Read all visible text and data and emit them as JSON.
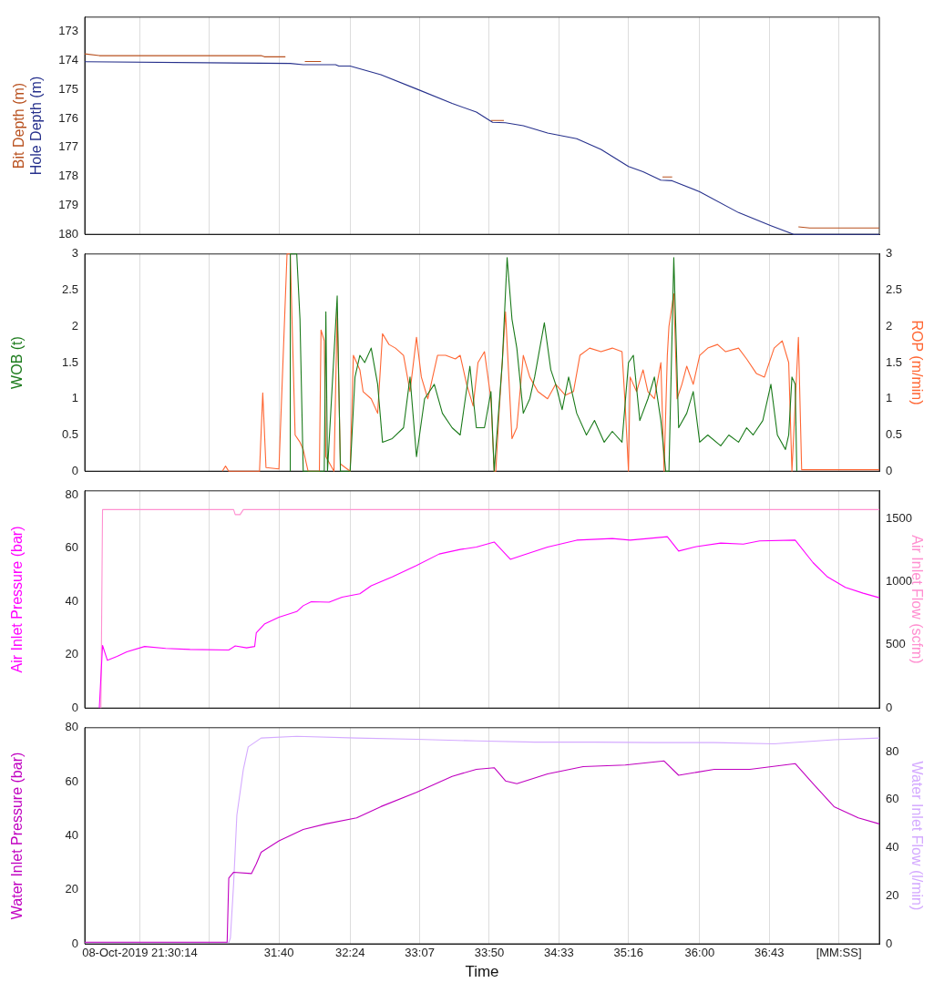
{
  "chart_data": [
    {
      "type": "line",
      "xlim": [
        1780,
        2271
      ],
      "ylim": [
        180,
        172.5
      ],
      "yticks": [
        173,
        174,
        175,
        176,
        177,
        178,
        179,
        180
      ],
      "tick_labels": "y",
      "grid": "x",
      "xticks": [
        {
          "value": 1814,
          "label": null
        },
        {
          "value": 1857,
          "label": null
        },
        {
          "value": 1900,
          "label": null
        },
        {
          "value": 1944,
          "label": null
        },
        {
          "value": 1987,
          "label": null
        },
        {
          "value": 2030,
          "label": null
        },
        {
          "value": 2073,
          "label": null
        },
        {
          "value": 2116,
          "label": null
        },
        {
          "value": 2160,
          "label": null
        },
        {
          "value": 2203,
          "label": null
        },
        {
          "value": 2246,
          "label": null
        }
      ],
      "series": [
        {
          "name": "Bit Depth (m)",
          "color": "#b8501e",
          "x": [
            1780,
            1789,
            1889,
            1891,
            1904,
            1910,
            1916,
            1926,
            1930,
            2031,
            2039,
            2042,
            2137,
            2143,
            2145,
            2221,
            2228,
            2271
          ],
          "values": [
            173.77,
            173.83,
            173.83,
            173.87,
            173.87,
            null,
            174.03,
            174.03,
            null,
            176.07,
            176.07,
            null,
            178.02,
            178.02,
            null,
            179.74,
            179.78,
            179.78
          ]
        },
        {
          "name": "Hole Depth (m)",
          "color": "#26308c",
          "x": [
            1780,
            1907,
            1915,
            1935,
            1937,
            1944,
            1963,
            1985,
            2007,
            2022,
            2032,
            2040,
            2051,
            2066,
            2084,
            2099,
            2116,
            2125,
            2136,
            2143,
            2160,
            2184,
            2204,
            2218,
            2271
          ],
          "values": [
            174.04,
            174.1,
            174.14,
            174.14,
            174.19,
            174.19,
            174.49,
            174.98,
            175.48,
            175.78,
            176.13,
            176.15,
            176.25,
            176.5,
            176.7,
            177.07,
            177.66,
            177.84,
            178.13,
            178.15,
            178.53,
            179.25,
            179.7,
            180,
            180
          ]
        }
      ]
    },
    {
      "type": "line",
      "ylabel": "WOB (t)",
      "y2label": "ROP (m/min)",
      "xlim": [
        1780,
        2271
      ],
      "ylim": [
        0,
        3
      ],
      "yticks": [
        0,
        0.5,
        1,
        1.5,
        2,
        2.5,
        3
      ],
      "y2lim": [
        0,
        3
      ],
      "y2ticks": [
        0,
        0.5,
        1,
        1.5,
        2,
        2.5,
        3
      ],
      "tick_labels": "y",
      "grid": "x",
      "xticks": [
        {
          "value": 1814,
          "label": null
        },
        {
          "value": 1857,
          "label": null
        },
        {
          "value": 1900,
          "label": null
        },
        {
          "value": 1944,
          "label": null
        },
        {
          "value": 1987,
          "label": null
        },
        {
          "value": 2030,
          "label": null
        },
        {
          "value": 2073,
          "label": null
        },
        {
          "value": 2116,
          "label": null
        },
        {
          "value": 2160,
          "label": null
        },
        {
          "value": 2203,
          "label": null
        },
        {
          "value": 2246,
          "label": null
        }
      ],
      "series": [
        {
          "color": "#ff6633",
          "axis": "y2",
          "x": [
            1865,
            1867,
            1869,
            1888,
            1890,
            1892,
            1900,
            1905,
            1907,
            1910,
            1913,
            1915,
            1918,
            1925,
            1926,
            1928,
            1929,
            1934,
            1936,
            1938,
            1944,
            1946,
            1950,
            1952,
            1957,
            1961,
            1964,
            1968,
            1972,
            1977,
            1981,
            1985,
            1988,
            1992,
            1998,
            2003,
            2009,
            2012,
            2016,
            2020,
            2023,
            2027,
            2031,
            2033,
            2034,
            2036,
            2040,
            2044,
            2047,
            2051,
            2055,
            2060,
            2066,
            2071,
            2077,
            2082,
            2086,
            2092,
            2099,
            2106,
            2112,
            2114,
            2116,
            2117,
            2121,
            2125,
            2128,
            2132,
            2136,
            2138,
            2140,
            2141,
            2144,
            2146,
            2149,
            2152,
            2156,
            2160,
            2165,
            2171,
            2176,
            2184,
            2189,
            2195,
            2200,
            2206,
            2211,
            2215,
            2217,
            2221,
            2223,
            2271
          ],
          "values": [
            0,
            0.07,
            0,
            0,
            1.08,
            0.05,
            0.03,
            3,
            3,
            0.5,
            0.4,
            0.3,
            0,
            0,
            1.95,
            1.8,
            0.2,
            0,
            2.2,
            0.1,
            0,
            1.6,
            1.4,
            1.1,
            1.0,
            0.8,
            1.9,
            1.75,
            1.7,
            1.6,
            1.1,
            1.85,
            1.3,
            1.0,
            1.6,
            1.6,
            1.55,
            1.6,
            1.2,
            0.9,
            1.5,
            1.65,
            1.0,
            0,
            0,
            0.8,
            2.2,
            0.45,
            0.6,
            1.6,
            1.3,
            1.1,
            1.0,
            1.2,
            1.05,
            1.1,
            1.6,
            1.7,
            1.65,
            1.7,
            1.65,
            0.9,
            0,
            1.3,
            1.1,
            1.4,
            1.1,
            1.0,
            1.5,
            0,
            1.6,
            2.0,
            2.45,
            1.0,
            1.2,
            1.45,
            1.2,
            1.6,
            1.7,
            1.75,
            1.65,
            1.7,
            1.55,
            1.35,
            1.3,
            1.7,
            1.8,
            1.5,
            0,
            1.85,
            0.02,
            0.02
          ]
        },
        {
          "color": "#1a7a1a",
          "x": [
            1907,
            1907,
            1911,
            1913,
            1915,
            1928,
            1929,
            1930,
            1936,
            1938,
            1944,
            1947,
            1950,
            1953,
            1957,
            1961,
            1964,
            1970,
            1977,
            1981,
            1985,
            1990,
            1996,
            2001,
            2007,
            2012,
            2018,
            2022,
            2027,
            2031,
            2033,
            2038,
            2041,
            2044,
            2047,
            2051,
            2055,
            2058,
            2064,
            2068,
            2071,
            2075,
            2079,
            2084,
            2090,
            2095,
            2101,
            2106,
            2112,
            2116,
            2119,
            2123,
            2128,
            2132,
            2136,
            2139,
            2141,
            2144,
            2147,
            2152,
            2156,
            2160,
            2165,
            2173,
            2178,
            2184,
            2189,
            2193,
            2199,
            2204,
            2208,
            2213,
            2215,
            2217,
            2219,
            2220
          ],
          "values": [
            0,
            3,
            3,
            2.1,
            0,
            0,
            2.2,
            0,
            2.42,
            0,
            0,
            1.3,
            1.6,
            1.5,
            1.7,
            1.2,
            0.4,
            0.45,
            0.6,
            1.3,
            0.2,
            1.0,
            1.2,
            0.8,
            0.6,
            0.5,
            1.45,
            0.6,
            0.6,
            1.1,
            0,
            1.5,
            2.95,
            2.1,
            1.7,
            0.8,
            1.0,
            1.3,
            2.05,
            1.4,
            1.2,
            0.85,
            1.3,
            0.8,
            0.5,
            0.7,
            0.4,
            0.55,
            0.4,
            1.5,
            1.6,
            0.7,
            1.0,
            1.3,
            0.7,
            0,
            0,
            2.95,
            0.6,
            0.8,
            1.1,
            0.4,
            0.5,
            0.35,
            0.5,
            0.4,
            0.6,
            0.5,
            0.7,
            1.2,
            0.5,
            0.3,
            0.5,
            1.3,
            1.2,
            0
          ]
        }
      ]
    },
    {
      "type": "line",
      "ylabel": "Air Inlet Pressure (bar)",
      "y2label": "Air Inlet Flow (scfm)",
      "xlim": [
        1780,
        2271
      ],
      "ylim": [
        0,
        81.5
      ],
      "yticks": [
        0,
        20,
        40,
        60,
        80
      ],
      "y2lim": [
        0,
        1718
      ],
      "y2ticks": [
        0,
        500,
        1000,
        1500
      ],
      "tick_labels": "y",
      "grid": "x",
      "xticks": [
        {
          "value": 1814,
          "label": null
        },
        {
          "value": 1857,
          "label": null
        },
        {
          "value": 1900,
          "label": null
        },
        {
          "value": 1944,
          "label": null
        },
        {
          "value": 1987,
          "label": null
        },
        {
          "value": 2030,
          "label": null
        },
        {
          "value": 2073,
          "label": null
        },
        {
          "value": 2116,
          "label": null
        },
        {
          "value": 2160,
          "label": null
        },
        {
          "value": 2203,
          "label": null
        },
        {
          "value": 2246,
          "label": null
        }
      ],
      "series": [
        {
          "color": "#ff8fd0",
          "axis": "y2",
          "x": [
            1790,
            1791,
            1872,
            1873,
            1876,
            1878,
            2271
          ],
          "values": [
            0,
            1570,
            1570,
            1530,
            1530,
            1570,
            1570
          ]
        },
        {
          "color": "#ff00ff",
          "x": [
            1789,
            1791,
            1794,
            1800,
            1806,
            1817,
            1830,
            1845,
            1869,
            1873,
            1880,
            1885,
            1886,
            1891,
            1900,
            1911,
            1915,
            1920,
            1931,
            1939,
            1950,
            1957,
            1970,
            1985,
            1999,
            2012,
            2022,
            2033,
            2043,
            2051,
            2066,
            2084,
            2106,
            2117,
            2128,
            2140,
            2147,
            2158,
            2173,
            2187,
            2197,
            2219,
            2230,
            2239,
            2250,
            2261,
            2271
          ],
          "values": [
            0,
            23.5,
            17.9,
            19.4,
            21.1,
            23.1,
            22.4,
            22,
            21.8,
            23.3,
            22.6,
            23.1,
            28.2,
            31.5,
            34.1,
            36.2,
            38.4,
            39.9,
            39.7,
            41.6,
            42.9,
            45.9,
            49.2,
            53.5,
            57.8,
            59.5,
            60.4,
            62.3,
            55.8,
            57.4,
            60.4,
            63,
            63.6,
            63,
            63.6,
            64.3,
            58.9,
            60.6,
            61.9,
            61.5,
            62.7,
            63,
            54.6,
            49.2,
            45.3,
            43.1,
            41.4
          ]
        }
      ]
    },
    {
      "type": "line",
      "xlabel": "Time",
      "ylabel": "Water Inlet Pressure (bar)",
      "y2label": "Water Inlet Flow (l/min)",
      "xlim": [
        1780,
        2271
      ],
      "ylim": [
        0,
        80
      ],
      "yticks": [
        0,
        20,
        40,
        60,
        80
      ],
      "y2lim": [
        0,
        90
      ],
      "y2ticks": [
        0,
        20,
        40,
        60,
        80
      ],
      "grid": "x",
      "xticks": [
        {
          "value": 1814,
          "label": "08-Oct-2019 21:30:14"
        },
        {
          "value": 1857,
          "label": null
        },
        {
          "value": 1900,
          "label": "31:40"
        },
        {
          "value": 1944,
          "label": "32:24"
        },
        {
          "value": 1987,
          "label": "33:07"
        },
        {
          "value": 2030,
          "label": "33:50"
        },
        {
          "value": 2073,
          "label": "34:33"
        },
        {
          "value": 2116,
          "label": "35:16"
        },
        {
          "value": 2160,
          "label": "36:00"
        },
        {
          "value": 2203,
          "label": "36:43"
        },
        {
          "value": 2246,
          "label": "[MM:SS]"
        }
      ],
      "series": [
        {
          "color": "#d4aaff",
          "axis": "y2",
          "x": [
            1780,
            1869,
            1870,
            1872,
            1874,
            1878,
            1881,
            1889,
            1911,
            1948,
            1985,
            2022,
            2058,
            2095,
            2132,
            2169,
            2206,
            2243,
            2271
          ],
          "values": [
            0.5,
            0.5,
            2.4,
            25,
            53.6,
            72.6,
            82,
            85.7,
            86.4,
            85.7,
            85.2,
            84.5,
            84,
            84,
            83.8,
            83.8,
            83.3,
            85,
            85.7
          ]
        },
        {
          "color": "#c000c0",
          "x": [
            1780,
            1868,
            1869,
            1872,
            1883,
            1886,
            1889,
            1900,
            1915,
            1929,
            1948,
            1963,
            1985,
            2007,
            2022,
            2033,
            2040,
            2047,
            2066,
            2088,
            2114,
            2138,
            2147,
            2169,
            2191,
            2219,
            2230,
            2243,
            2258,
            2271
          ],
          "values": [
            0.6,
            0.6,
            24.3,
            26.5,
            26,
            29.6,
            33.9,
            38.1,
            42.3,
            44.4,
            46.6,
            50.8,
            56.1,
            62,
            64.6,
            65.2,
            60.3,
            59.3,
            62.9,
            65.6,
            66.2,
            67.7,
            62.4,
            64.6,
            64.6,
            66.7,
            59.3,
            50.8,
            46.6,
            44.4
          ]
        }
      ]
    }
  ]
}
